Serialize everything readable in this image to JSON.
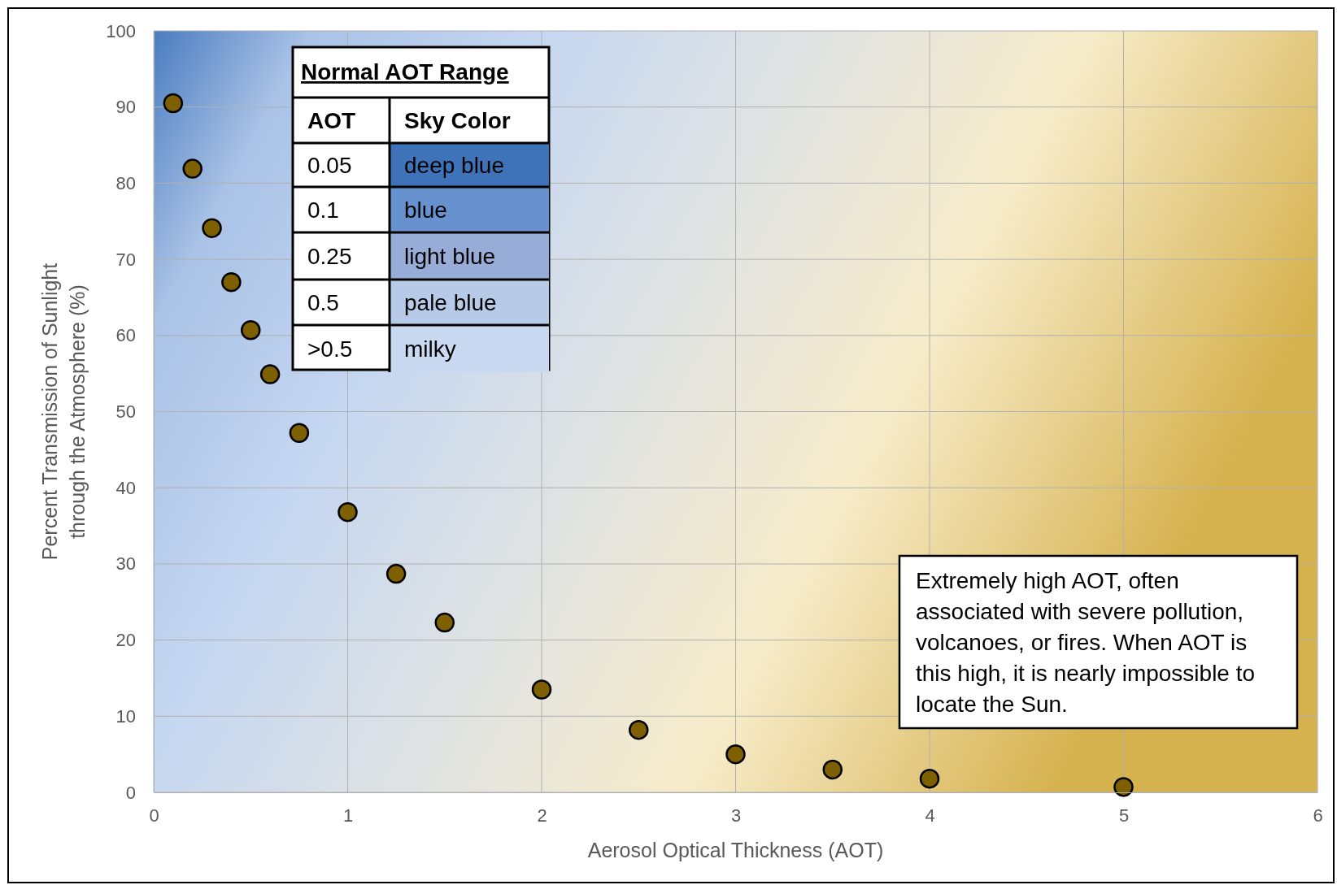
{
  "chart_data": {
    "type": "scatter",
    "xlabel": "Aerosol Optical Thickness (AOT)",
    "ylabel": "Percent Transmission of Sunlight through the Atmosphere (%)",
    "x": [
      0.1,
      0.2,
      0.3,
      0.4,
      0.5,
      0.6,
      0.75,
      1,
      1.25,
      1.5,
      2,
      2.5,
      3,
      3.5,
      4,
      5
    ],
    "values": [
      90.5,
      81.9,
      74.1,
      67,
      60.7,
      54.9,
      47.2,
      36.8,
      28.7,
      22.3,
      13.5,
      8.2,
      5,
      3,
      1.8,
      0.7
    ],
    "color": "#7f6000",
    "marker": "circle",
    "grid": true,
    "xlim": [
      0,
      6
    ],
    "xticks": [
      0,
      1,
      2,
      3,
      4,
      5,
      6
    ],
    "ylim": [
      0,
      100
    ],
    "yticks": [
      0,
      10,
      20,
      30,
      40,
      50,
      60,
      70,
      80,
      90,
      100
    ],
    "annotations": [
      "Normal AOT Range",
      "AOT",
      "Sky Color",
      "0.05",
      "deep blue",
      "0.1",
      "blue",
      "0.25",
      "light blue",
      "0.5",
      "pale blue",
      ">0.5",
      "milky",
      "Extremely high AOT, often associated with severe pollution, volcanoes, or fires. When AOT is this high, it is nearly impossible to locate the Sun."
    ]
  }
}
